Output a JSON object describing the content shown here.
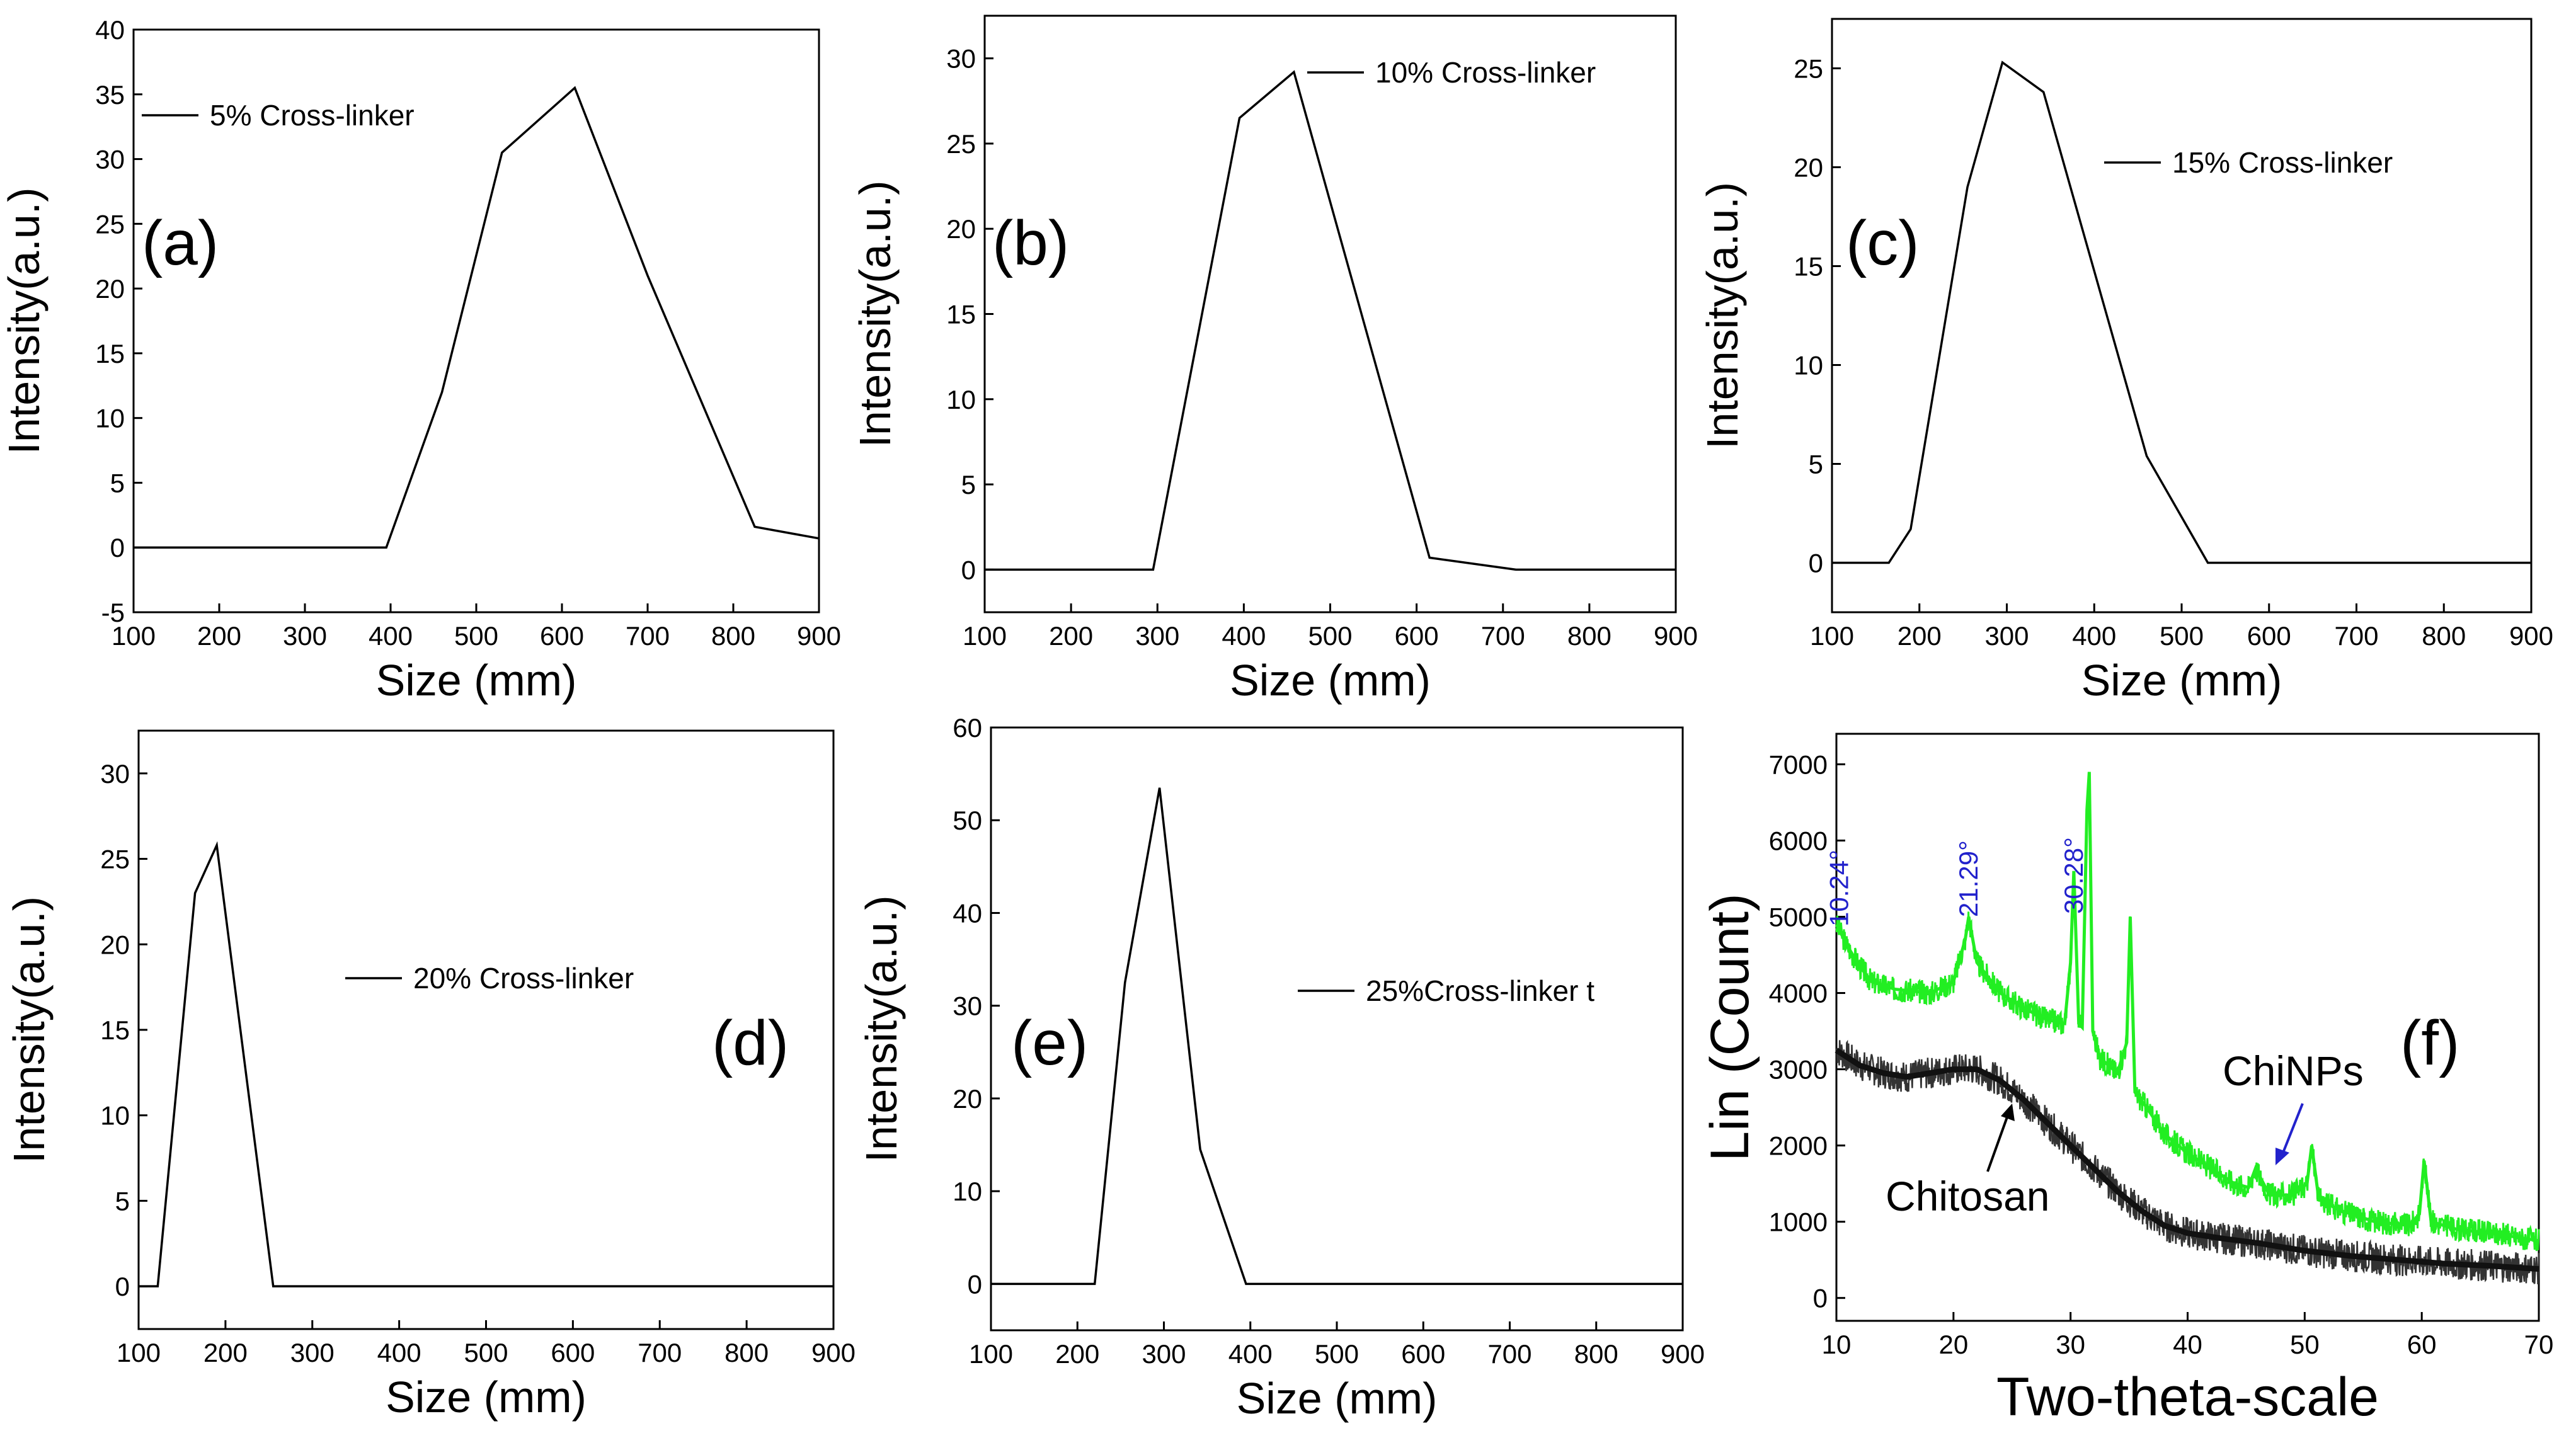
{
  "figure_name": "chitosan-nanoparticles-size-distribution-and-xrd",
  "colors": {
    "axis": "#000000",
    "line": "#000000",
    "chinps": "#22ee22",
    "chitosan": "#333333",
    "annotation": "#2222cc"
  },
  "chart_data": [
    {
      "type": "line",
      "panel_label": "(a)",
      "xlabel": "Size (mm)",
      "ylabel": "Intensity(a.u.)",
      "xlim": [
        100,
        900
      ],
      "ylim": [
        -5,
        40
      ],
      "xticks": [
        100,
        200,
        300,
        400,
        500,
        600,
        700,
        800,
        900
      ],
      "yticks": [
        -5,
        0,
        5,
        10,
        15,
        20,
        25,
        30,
        35,
        40
      ],
      "series": [
        {
          "name": "5% Cross-linker",
          "x": [
            100,
            395,
            460,
            530,
            615,
            700,
            825,
            900
          ],
          "y": [
            0,
            0,
            12,
            30.5,
            35.5,
            21,
            1.6,
            0.7
          ]
        }
      ]
    },
    {
      "type": "line",
      "panel_label": "(b)",
      "xlabel": "Size (mm)",
      "ylabel": "Intensity(a.u.)",
      "xlim": [
        100,
        900
      ],
      "ylim": [
        -2.5,
        32.5
      ],
      "xticks": [
        100,
        200,
        300,
        400,
        500,
        600,
        700,
        800,
        900
      ],
      "yticks": [
        0,
        5,
        10,
        15,
        20,
        25,
        30
      ],
      "series": [
        {
          "name": "10% Cross-linker",
          "x": [
            100,
            295,
            395,
            458,
            615,
            715,
            900
          ],
          "y": [
            0,
            0,
            26.5,
            29.2,
            0.7,
            0,
            0
          ]
        }
      ]
    },
    {
      "type": "line",
      "panel_label": "(c)",
      "xlabel": "Size (mm)",
      "ylabel": "Intensity(a.u.)",
      "xlim": [
        100,
        900
      ],
      "ylim": [
        -2.5,
        27.5
      ],
      "xticks": [
        100,
        200,
        300,
        400,
        500,
        600,
        700,
        800,
        900
      ],
      "yticks": [
        0,
        5,
        10,
        15,
        20,
        25
      ],
      "series": [
        {
          "name": "15% Cross-linker",
          "x": [
            100,
            165,
            190,
            255,
            295,
            342,
            460,
            530,
            900
          ],
          "y": [
            0,
            0,
            1.7,
            19,
            25.3,
            23.8,
            5.4,
            0,
            0
          ]
        }
      ]
    },
    {
      "type": "line",
      "panel_label": "(d)",
      "xlabel": "Size (mm)",
      "ylabel": "Intensity(a.u.)",
      "xlim": [
        100,
        900
      ],
      "ylim": [
        -2.5,
        32.5
      ],
      "xticks": [
        100,
        200,
        300,
        400,
        500,
        600,
        700,
        800,
        900
      ],
      "yticks": [
        0,
        5,
        10,
        15,
        20,
        25,
        30
      ],
      "series": [
        {
          "name": "20% Cross-linker",
          "x": [
            100,
            122,
            165,
            190,
            255,
            900
          ],
          "y": [
            0,
            0,
            23,
            25.8,
            0,
            0
          ]
        }
      ]
    },
    {
      "type": "line",
      "panel_label": "(e)",
      "xlabel": "Size (mm)",
      "ylabel": "Intensity(a.u.)",
      "xlim": [
        100,
        900
      ],
      "ylim": [
        -5,
        60
      ],
      "xticks": [
        100,
        200,
        300,
        400,
        500,
        600,
        700,
        800,
        900
      ],
      "yticks": [
        0,
        10,
        20,
        30,
        40,
        50,
        60
      ],
      "series": [
        {
          "name": "25%Cross-linker t",
          "x": [
            100,
            220,
            255,
            295,
            342,
            395,
            900
          ],
          "y": [
            0,
            0,
            32.5,
            53.5,
            14.5,
            0,
            0
          ]
        }
      ]
    },
    {
      "type": "line",
      "panel_label": "(f)",
      "xlabel": "Two-theta-scale",
      "ylabel": "Lin (Count)",
      "xlim": [
        10,
        70
      ],
      "ylim": [
        -300,
        7400
      ],
      "xticks": [
        10,
        20,
        30,
        40,
        50,
        60,
        70
      ],
      "yticks": [
        0,
        1000,
        2000,
        3000,
        4000,
        5000,
        6000,
        7000
      ],
      "series": [
        {
          "name": "ChiNPs",
          "x": [
            10,
            11,
            12,
            13,
            15,
            18,
            20,
            21,
            21.3,
            22,
            24,
            26,
            28,
            29.5,
            30,
            30.28,
            30.7,
            31,
            31.4,
            31.6,
            31.9,
            32.5,
            34,
            34.8,
            35.1,
            35.5,
            36.5,
            38,
            40,
            42,
            44,
            45.2,
            45.8,
            47,
            49,
            50.2,
            50.6,
            51.2,
            53,
            56,
            59,
            59.8,
            60.2,
            60.8,
            63,
            66,
            70
          ],
          "y": [
            4900,
            4600,
            4350,
            4150,
            4050,
            4000,
            4150,
            4700,
            5000,
            4400,
            4000,
            3800,
            3650,
            3600,
            4400,
            5600,
            3600,
            3550,
            6400,
            6900,
            3500,
            3150,
            2950,
            3350,
            5000,
            2700,
            2500,
            2150,
            1900,
            1700,
            1500,
            1450,
            1700,
            1350,
            1350,
            1500,
            2000,
            1300,
            1150,
            1000,
            950,
            1100,
            1800,
            1000,
            900,
            850,
            750
          ]
        },
        {
          "name": "Chitosan",
          "x": [
            10,
            12,
            14,
            16,
            18,
            20,
            22,
            24,
            26,
            28,
            30,
            32,
            34,
            36,
            38,
            40,
            43,
            46,
            50,
            54,
            58,
            62,
            66,
            70
          ],
          "y": [
            3250,
            3050,
            2950,
            2900,
            2950,
            3000,
            3000,
            2850,
            2600,
            2300,
            2000,
            1700,
            1400,
            1150,
            950,
            850,
            780,
            720,
            620,
            550,
            500,
            450,
            420,
            380
          ]
        }
      ],
      "peak_labels": [
        "10.24°",
        "21.29°",
        "30.28°"
      ],
      "peak_x": [
        10.24,
        21.29,
        30.28
      ],
      "annotations": [
        "ChiNPs",
        "Chitosan"
      ]
    }
  ]
}
